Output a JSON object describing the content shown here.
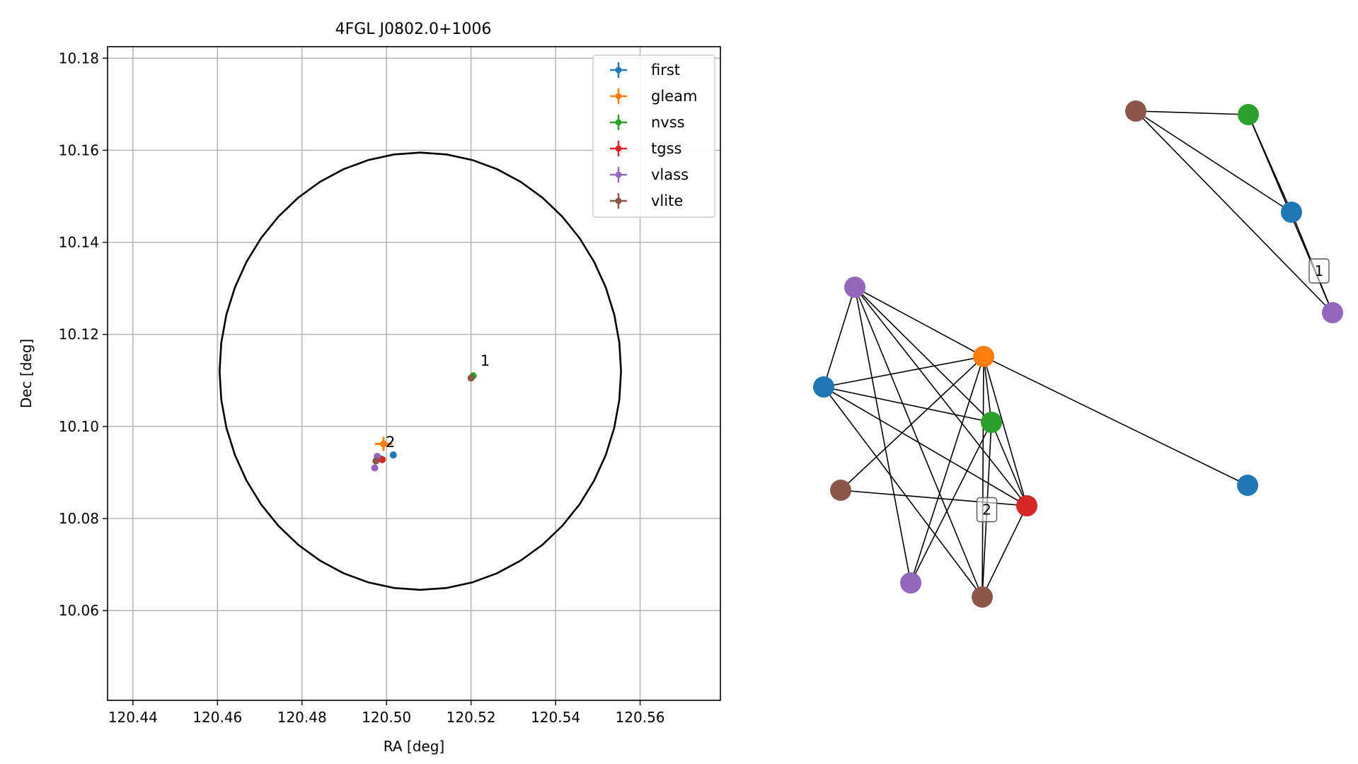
{
  "chart_data": [
    {
      "type": "scatter",
      "title": "4FGL J0802.0+1006",
      "xlabel": "RA [deg]",
      "ylabel": "Dec [deg]",
      "xlim": [
        120.434,
        120.579
      ],
      "ylim": [
        10.0405,
        10.1825
      ],
      "xticks": [
        "120.44",
        "120.46",
        "120.48",
        "120.50",
        "120.52",
        "120.54",
        "120.56"
      ],
      "yticks": [
        "10.06",
        "10.08",
        "10.10",
        "10.12",
        "10.14",
        "10.16",
        "10.18"
      ],
      "grid": true,
      "legend_position": "top-right",
      "series": [
        {
          "name": "first",
          "color": "#1f77b4",
          "points": [
            [
              120.5016,
              10.0938
            ]
          ]
        },
        {
          "name": "gleam",
          "color": "#ff7f0e",
          "points": [
            [
              120.4993,
              10.0962
            ]
          ]
        },
        {
          "name": "nvss",
          "color": "#2ca02c",
          "points": [
            [
              120.5205,
              10.111
            ],
            [
              120.4985,
              10.093
            ]
          ]
        },
        {
          "name": "tgss",
          "color": "#d62728",
          "points": [
            [
              120.499,
              10.0928
            ]
          ]
        },
        {
          "name": "vlass",
          "color": "#9467bd",
          "points": [
            [
              120.4972,
              10.091
            ],
            [
              120.4978,
              10.0935
            ]
          ]
        },
        {
          "name": "vlite",
          "color": "#8c564b",
          "points": [
            [
              120.52,
              10.1105
            ],
            [
              120.4975,
              10.0925
            ]
          ]
        }
      ],
      "circle": {
        "center": [
          120.508,
          10.112
        ],
        "radius": 0.0475
      },
      "annotations": [
        {
          "text": "1",
          "x": 120.5222,
          "y": 10.1132
        },
        {
          "text": "2",
          "x": 120.4998,
          "y": 10.0955
        }
      ]
    },
    {
      "type": "network",
      "node_labels": [
        {
          "text": "1",
          "between": [
            2,
            3
          ]
        },
        {
          "text": "2",
          "between": [
            7,
            11
          ]
        }
      ],
      "nodes": [
        {
          "id": 0,
          "color": "#8c564b"
        },
        {
          "id": 1,
          "color": "#2ca02c"
        },
        {
          "id": 2,
          "color": "#1f77b4"
        },
        {
          "id": 3,
          "color": "#9467bd"
        },
        {
          "id": 4,
          "color": "#9467bd"
        },
        {
          "id": 5,
          "color": "#ff7f0e"
        },
        {
          "id": 6,
          "color": "#1f77b4"
        },
        {
          "id": 7,
          "color": "#2ca02c"
        },
        {
          "id": 8,
          "color": "#1f77b4"
        },
        {
          "id": 9,
          "color": "#8c564b"
        },
        {
          "id": 10,
          "color": "#d62728"
        },
        {
          "id": 11,
          "color": "#8c564b"
        },
        {
          "id": 12,
          "color": "#9467bd"
        }
      ],
      "edges": [
        [
          0,
          1
        ],
        [
          0,
          2
        ],
        [
          0,
          3
        ],
        [
          1,
          2
        ],
        [
          1,
          3
        ],
        [
          2,
          3
        ],
        [
          4,
          6
        ],
        [
          4,
          5
        ],
        [
          4,
          7
        ],
        [
          4,
          10
        ],
        [
          4,
          11
        ],
        [
          4,
          12
        ],
        [
          5,
          6
        ],
        [
          5,
          7
        ],
        [
          5,
          10
        ],
        [
          5,
          11
        ],
        [
          5,
          9
        ],
        [
          5,
          8
        ],
        [
          5,
          12
        ],
        [
          6,
          7
        ],
        [
          6,
          10
        ],
        [
          6,
          11
        ],
        [
          7,
          10
        ],
        [
          7,
          11
        ],
        [
          9,
          10
        ],
        [
          10,
          11
        ],
        [
          7,
          12
        ]
      ]
    }
  ]
}
